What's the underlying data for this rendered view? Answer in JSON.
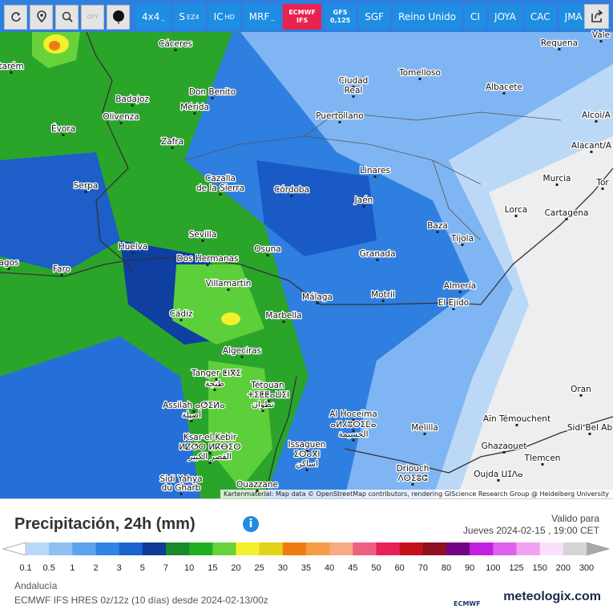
{
  "toolbar": {
    "city_icon": "CITY",
    "buttons": [
      {
        "label": "4x4",
        "sub": "_",
        "layout": "inline"
      },
      {
        "label": "S",
        "sub": "EZ4",
        "layout": "inline"
      },
      {
        "label": "IC",
        "sub": "HD",
        "layout": "inline"
      },
      {
        "label": "MRF",
        "sub": "_",
        "layout": "inline"
      },
      {
        "label": "ECMWF",
        "sub": "IFS",
        "layout": "stacked",
        "active": true
      },
      {
        "label": "GFS",
        "sub": "0,125",
        "layout": "stacked"
      },
      {
        "label": "SGF"
      },
      {
        "label": "Reino Unido"
      },
      {
        "label": "CI"
      },
      {
        "label": "JOYA"
      },
      {
        "label": "CAC"
      },
      {
        "label": "JMA"
      }
    ]
  },
  "map": {
    "cities": [
      "Cáceres",
      "Requena",
      "Vale",
      "tarém",
      "Badajoz",
      "Don Benito",
      "Ciudad",
      "Real",
      "Tomelloso",
      "Albacete",
      "Alcoi/A",
      "Mérida",
      "Olivenza",
      "Puertollano",
      "Évora",
      "Zafra",
      "Alacant/A",
      "Linares",
      "Murcia",
      "Tor",
      "Serpa",
      "Cazalla",
      "de la Sierra",
      "Córdoba",
      "Jaén",
      "Lorca",
      "Cartagena",
      "Baza",
      "Sevilla",
      "Tíjola",
      "Huelva",
      "Osuna",
      "Granada",
      "Dos Hermanas",
      "agos",
      "Faro",
      "Almería",
      "Villamartín",
      "Málaga",
      "Motril",
      "El Ejido",
      "Cádiz",
      "Marbella",
      "Algeciras",
      "Tanger ⵟⵏⴳⵉ",
      "طنجة",
      "Tétouan",
      "ⵜⵉⵟⵟⴰⵡⵉⵏ",
      "تطوان",
      "Oran",
      "Assilah ⴰⵚⵉⵍⴰ",
      "أصيلة",
      "Al Hoceïma",
      "ⴰⵍⵃⵓⵙⵉⵎⴰ",
      "الحسيمة",
      "Aïn Témouchent",
      "Sidi Bel Ab",
      "Melilla",
      "Ksar-el-Kebir",
      "ⵍⵇⵚⵔ ⵍⴽⴱⵉⵔ",
      "القصر الكبير",
      "Ghazaouet",
      "Issaguen",
      "ⵉⵙⴰⴳⵏ",
      "اساكن",
      "Tlemcen",
      "Driouch",
      "ⴷⵔⵉⵓⵛ",
      "Oujda ⵡⵊⴷⴰ",
      "Sidi Yahya",
      "du Gharb",
      "Ouazzane"
    ],
    "attribution": "Kartenmaterial: Map data © OpenStreetMap contributors, rendering GIScience Research Group @ Heidelberg University"
  },
  "panel": {
    "title": "Precipitación, 24h (mm)",
    "valid_label": "Valido para",
    "valid_time": "Jueves 2024-02-15 , 19:00 CET",
    "legend": {
      "labels": [
        0.1,
        0.5,
        1,
        2,
        3,
        5,
        7,
        10,
        15,
        20,
        25,
        30,
        35,
        40,
        45,
        50,
        60,
        70,
        80,
        90,
        100,
        125,
        150,
        200,
        300
      ],
      "colors": [
        "#b9d7f6",
        "#8fc0f3",
        "#5ea3ee",
        "#2f84e6",
        "#1c63cf",
        "#0e3a98",
        "#178a2a",
        "#1fae22",
        "#68d23a",
        "#f3f02c",
        "#e2d21a",
        "#ef7b12",
        "#f59c42",
        "#f6ab82",
        "#ef5f82",
        "#e81f58",
        "#c4101d",
        "#8f1020",
        "#720584",
        "#c21fe0",
        "#e060f0",
        "#f0a2f0",
        "#fbe0fb",
        "#d4d4d4"
      ],
      "below_color": "#ffffff",
      "above_color": "#a8a8a8"
    },
    "region": "Andalucía",
    "model": "ECMWF IFS HRES 0z/12z (10 días) desde 2024-02-13/00z",
    "logo": "ECMWF",
    "brand": "meteologix.com"
  }
}
